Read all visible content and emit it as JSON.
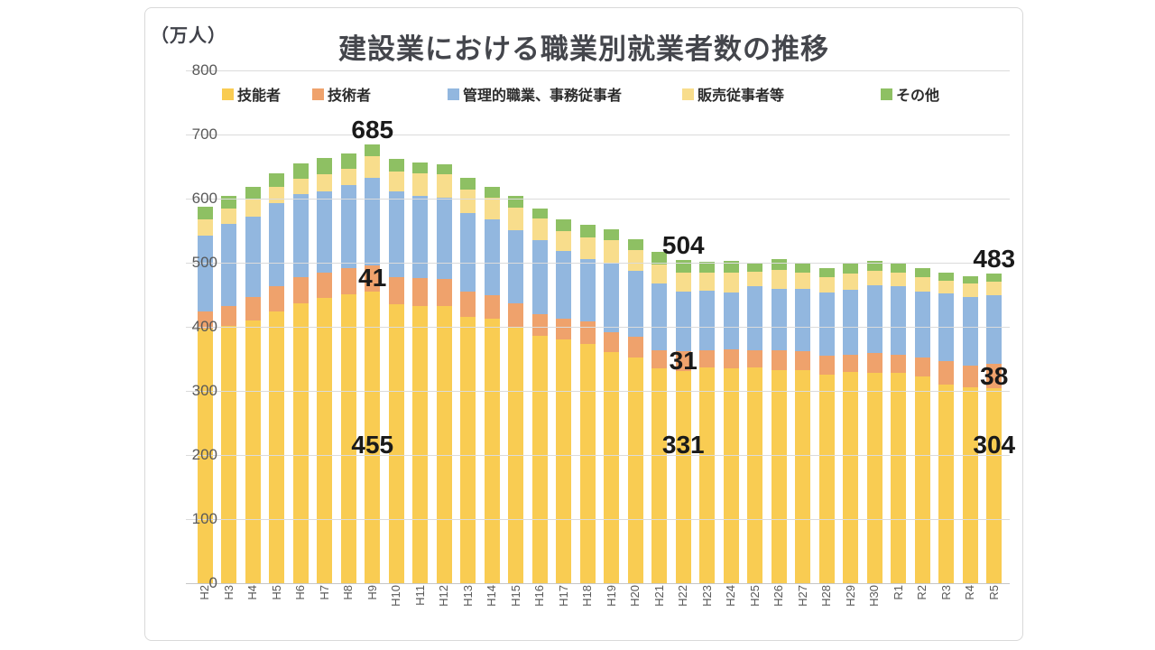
{
  "chart": {
    "unit_label": "（万人）",
    "title": "建設業における職業別就業者数の推移"
  },
  "chart_data": {
    "type": "bar",
    "stacked": true,
    "title": "建設業における職業別就業者数の推移",
    "unit": "万人",
    "ylabel": "（万人）",
    "ylim": [
      0,
      800
    ],
    "y_ticks": [
      0,
      100,
      200,
      300,
      400,
      500,
      600,
      700,
      800
    ],
    "grid": true,
    "legend_position": "top",
    "categories": [
      "H2",
      "H3",
      "H4",
      "H5",
      "H6",
      "H7",
      "H8",
      "H9",
      "H10",
      "H11",
      "H12",
      "H13",
      "H14",
      "H15",
      "H16",
      "H17",
      "H18",
      "H19",
      "H20",
      "H21",
      "H22",
      "H23",
      "H24",
      "H25",
      "H26",
      "H27",
      "H28",
      "H29",
      "H30",
      "R1",
      "R2",
      "R3",
      "R4",
      "R5"
    ],
    "series": [
      {
        "name": "技能者",
        "color": "#F9CC52",
        "values": [
          397,
          402,
          410,
          424,
          436,
          445,
          451,
          455,
          435,
          433,
          432,
          416,
          413,
          400,
          386,
          380,
          373,
          361,
          352,
          335,
          331,
          336,
          335,
          337,
          333,
          332,
          326,
          329,
          328,
          328,
          322,
          310,
          305,
          304
        ]
      },
      {
        "name": "技術者",
        "color": "#EFA26C",
        "values": [
          27,
          31,
          37,
          40,
          41,
          40,
          41,
          41,
          42,
          43,
          43,
          39,
          37,
          36,
          34,
          33,
          35,
          31,
          33,
          29,
          31,
          28,
          30,
          26,
          30,
          30,
          29,
          28,
          31,
          28,
          30,
          37,
          34,
          38
        ]
      },
      {
        "name": "管理的職業、事務従事者",
        "color": "#92B7DF",
        "values": [
          119,
          128,
          125,
          129,
          130,
          126,
          129,
          136,
          134,
          128,
          126,
          123,
          117,
          115,
          115,
          105,
          98,
          108,
          103,
          104,
          93,
          92,
          89,
          100,
          96,
          97,
          99,
          101,
          106,
          107,
          103,
          105,
          108,
          108
        ]
      },
      {
        "name": "販売従事者等",
        "color": "#F8DD8C",
        "values": [
          25,
          23,
          26,
          26,
          24,
          27,
          25,
          34,
          32,
          36,
          37,
          36,
          34,
          35,
          34,
          31,
          33,
          35,
          32,
          29,
          29,
          28,
          30,
          23,
          30,
          26,
          24,
          25,
          22,
          21,
          22,
          20,
          20,
          20
        ]
      },
      {
        "name": "その他",
        "color": "#8EC063",
        "values": [
          20,
          20,
          21,
          21,
          24,
          25,
          24,
          19,
          19,
          17,
          15,
          18,
          17,
          18,
          15,
          19,
          20,
          17,
          17,
          20,
          20,
          18,
          19,
          13,
          16,
          15,
          14,
          15,
          16,
          15,
          15,
          13,
          12,
          13
        ]
      }
    ],
    "totals_reference": {
      "H9": 685,
      "H22": 504,
      "R5": 483
    },
    "annotations": [
      {
        "text": "685",
        "category": "H9",
        "anchor": "total"
      },
      {
        "text": "41",
        "category": "H9",
        "anchor": "series2"
      },
      {
        "text": "455",
        "category": "H9",
        "anchor": "series1"
      },
      {
        "text": "504",
        "category": "H22",
        "anchor": "total"
      },
      {
        "text": "31",
        "category": "H22",
        "anchor": "series2"
      },
      {
        "text": "331",
        "category": "H22",
        "anchor": "series1"
      },
      {
        "text": "483",
        "category": "R5",
        "anchor": "total"
      },
      {
        "text": "38",
        "category": "R5",
        "anchor": "series2"
      },
      {
        "text": "304",
        "category": "R5",
        "anchor": "series1"
      }
    ],
    "legend_x_positions": [
      85,
      185,
      335,
      595,
      815
    ]
  }
}
